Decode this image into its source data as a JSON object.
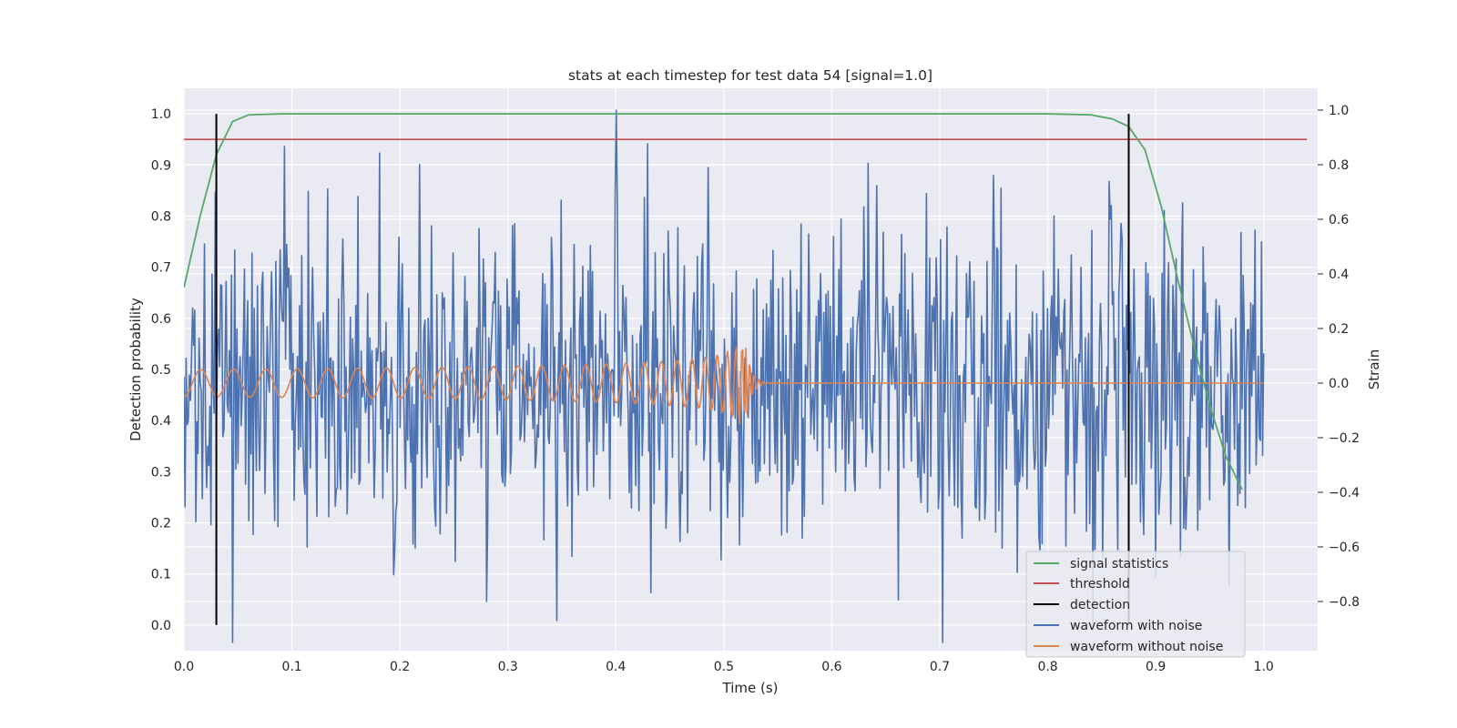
{
  "chart_data": {
    "type": "line",
    "title": "stats at each timestep for test data 54 [signal=1.0]",
    "xlabel": "Time (s)",
    "ylabel": "Detection probability",
    "y2label": "Strain",
    "xlim": [
      0.0,
      1.05
    ],
    "ylim": [
      -0.05,
      1.05
    ],
    "y2lim": [
      -0.98,
      1.08
    ],
    "xticks": [
      "0.0",
      "0.1",
      "0.2",
      "0.3",
      "0.4",
      "0.5",
      "0.6",
      "0.7",
      "0.8",
      "0.9",
      "1.0"
    ],
    "yticks": [
      "0.0",
      "0.1",
      "0.2",
      "0.3",
      "0.4",
      "0.5",
      "0.6",
      "0.7",
      "0.8",
      "0.9",
      "1.0"
    ],
    "y2ticks": [
      "−0.8",
      "−0.6",
      "−0.4",
      "−0.2",
      "0.0",
      "0.2",
      "0.4",
      "0.6",
      "0.8",
      "1.0"
    ],
    "grid": true,
    "legend_position": "lower-right",
    "colors": {
      "signal_statistics": "#55a868",
      "threshold": "#c44e52",
      "detection": "#000000",
      "waveform_with_noise": "#4c72b0",
      "waveform_without_noise": "#dd8452",
      "background": "#eaeaf2",
      "grid": "#ffffff"
    },
    "series": [
      {
        "name": "signal statistics",
        "axis": "left",
        "x": [
          0.0,
          0.015,
          0.03,
          0.045,
          0.06,
          0.09,
          0.2,
          0.4,
          0.6,
          0.8,
          0.84,
          0.86,
          0.875,
          0.89,
          0.905,
          0.92,
          0.935,
          0.95,
          0.965,
          0.98
        ],
        "y": [
          0.66,
          0.8,
          0.92,
          0.985,
          0.998,
          1.0,
          1.0,
          1.0,
          1.0,
          1.0,
          0.998,
          0.99,
          0.975,
          0.93,
          0.82,
          0.68,
          0.55,
          0.43,
          0.33,
          0.265
        ]
      },
      {
        "name": "threshold",
        "axis": "left",
        "x": [
          0.0,
          1.04
        ],
        "y": [
          0.95,
          0.95
        ]
      },
      {
        "name": "detection",
        "axis": "left",
        "type": "vlines",
        "x": [
          0.03,
          0.875
        ],
        "y": [
          0.0,
          1.0
        ]
      },
      {
        "name": "waveform with noise",
        "axis": "right",
        "x_range": [
          0.0,
          1.0
        ],
        "n_points": 1000,
        "std": 0.3,
        "extremes": [
          {
            "x": 0.4,
            "y": 1.0
          },
          {
            "x": 0.485,
            "y": 0.79
          },
          {
            "x": 0.045,
            "y": -0.95
          },
          {
            "x": 0.345,
            "y": -0.87
          },
          {
            "x": 0.28,
            "y": -0.8
          },
          {
            "x": 0.9,
            "y": -0.71
          }
        ]
      },
      {
        "name": "waveform without noise",
        "axis": "right",
        "x_range": [
          0.0,
          1.0
        ],
        "n_points": 1000,
        "model": "chirp",
        "merger_time": 0.521,
        "amp_start": 0.05,
        "amp_peak": 0.15,
        "freq_start_hz": 32,
        "ringdown_tau": 0.005
      }
    ]
  }
}
